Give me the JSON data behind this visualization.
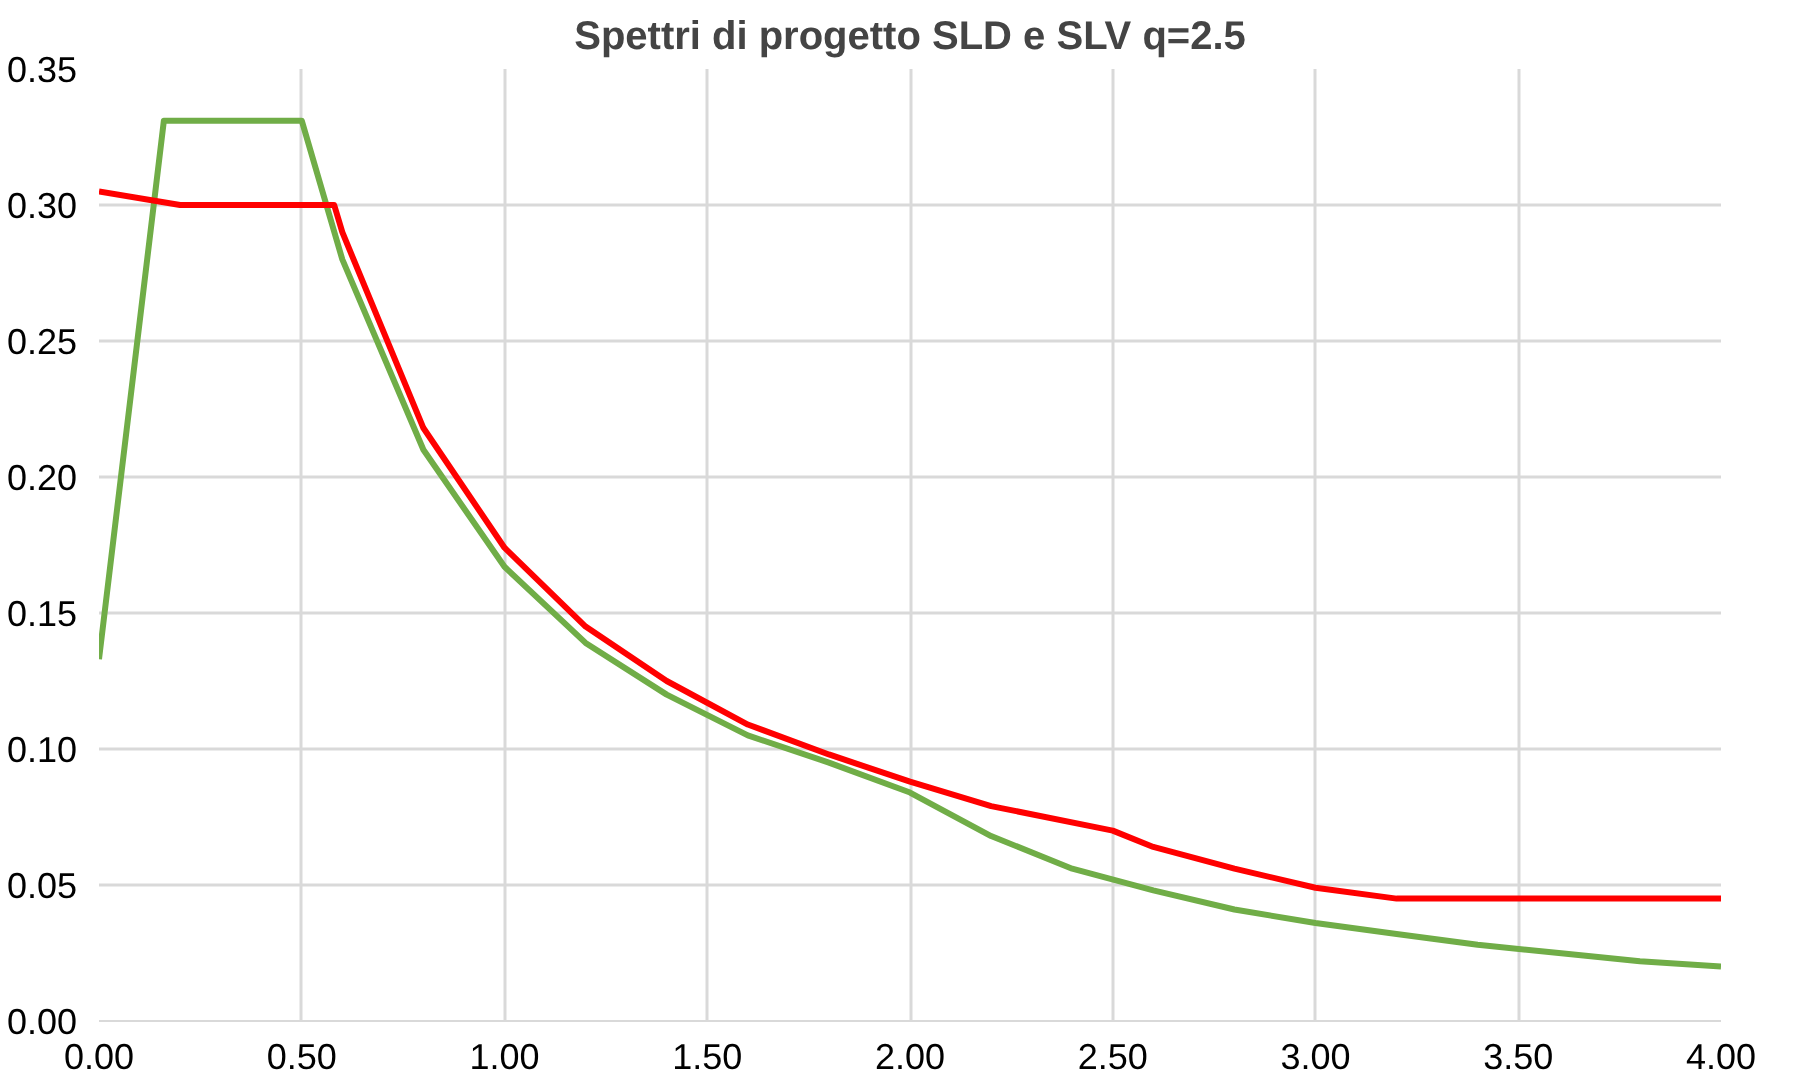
{
  "chart_data": {
    "type": "line",
    "title": "Spettri di progetto SLD e SLV q=2.5",
    "series": [
      {
        "color": "#70ad47",
        "x": [
          0,
          0.16,
          0.5,
          0.6,
          0.8,
          1.0,
          1.2,
          1.4,
          1.6,
          1.8,
          2.0,
          2.2,
          2.4,
          2.6,
          2.8,
          3.0,
          3.2,
          3.4,
          3.6,
          3.8,
          4.0
        ],
        "values": [
          0.133,
          0.331,
          0.331,
          0.28,
          0.21,
          0.167,
          0.139,
          0.12,
          0.105,
          0.095,
          0.084,
          0.068,
          0.056,
          0.048,
          0.041,
          0.036,
          0.032,
          0.028,
          0.025,
          0.022,
          0.02
        ]
      },
      {
        "color": "#ff0000",
        "x": [
          0,
          0.2,
          0.58,
          0.6,
          0.8,
          1.0,
          1.2,
          1.4,
          1.6,
          1.8,
          2.0,
          2.2,
          2.5,
          2.6,
          2.8,
          3.0,
          3.2,
          4.0
        ],
        "values": [
          0.305,
          0.3,
          0.3,
          0.29,
          0.218,
          0.174,
          0.145,
          0.125,
          0.109,
          0.098,
          0.088,
          0.079,
          0.07,
          0.064,
          0.056,
          0.049,
          0.045,
          0.045
        ]
      }
    ],
    "xlim": [
      0,
      4
    ],
    "ylim": [
      0,
      0.35
    ],
    "xticks": [
      {
        "value": 0,
        "label": "0.00"
      },
      {
        "value": 0.5,
        "label": "0.50"
      },
      {
        "value": 1,
        "label": "1.00"
      },
      {
        "value": 1.5,
        "label": "1.50"
      },
      {
        "value": 2,
        "label": "2.00"
      },
      {
        "value": 2.5,
        "label": "2.50"
      },
      {
        "value": 3,
        "label": "3.00"
      },
      {
        "value": 3.5,
        "label": "3.50"
      },
      {
        "value": 4,
        "label": "4.00"
      }
    ],
    "yticks": [
      {
        "value": 0,
        "label": "0.00"
      },
      {
        "value": 0.05,
        "label": "0.05"
      },
      {
        "value": 0.1,
        "label": "0.10"
      },
      {
        "value": 0.15,
        "label": "0.15"
      },
      {
        "value": 0.2,
        "label": "0.20"
      },
      {
        "value": 0.25,
        "label": "0.25"
      },
      {
        "value": 0.3,
        "label": "0.30"
      },
      {
        "value": 0.35,
        "label": "0.35"
      }
    ],
    "grid": true,
    "marker": "none",
    "line_style": "solid"
  }
}
